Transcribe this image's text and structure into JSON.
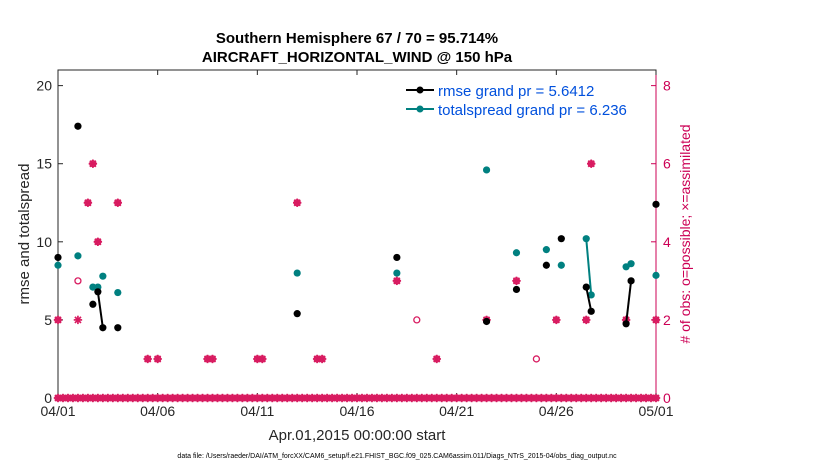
{
  "chart_data": {
    "type": "scatter",
    "title_line1": "Southern Hemisphere 67 / 70 = 95.714%",
    "title_line2": "AIRCRAFT_HORIZONTAL_WIND @ 150 hPa",
    "xlabel": "Apr.01,2015 00:00:00 start",
    "ylabel_left": "rmse and totalspread",
    "ylabel_right": "# of obs: o=possible; ×=assimilated",
    "xlim": [
      0,
      30
    ],
    "ylim_left": [
      0,
      21
    ],
    "ylim_right": [
      0,
      8.4
    ],
    "x_ticks": [
      {
        "x": 0,
        "label": "04/01"
      },
      {
        "x": 5,
        "label": "04/06"
      },
      {
        "x": 10,
        "label": "04/11"
      },
      {
        "x": 15,
        "label": "04/16"
      },
      {
        "x": 20,
        "label": "04/21"
      },
      {
        "x": 25,
        "label": "04/26"
      },
      {
        "x": 30,
        "label": "05/01"
      }
    ],
    "y_ticks_left": [
      "0",
      "5",
      "10",
      "15",
      "20"
    ],
    "y_ticks_right": [
      "0",
      "2",
      "4",
      "6",
      "8"
    ],
    "legend": {
      "position": "top-right",
      "entries": [
        {
          "label": "rmse grand pr = 5.6412",
          "color": "#000000"
        },
        {
          "label": "totalspread grand pr = 6.236",
          "color": "#008080"
        }
      ]
    },
    "colors": {
      "rmse": "#000000",
      "totalspread": "#008080",
      "obs": "#d81b60",
      "right_axis": "#cc0055"
    },
    "series": [
      {
        "name": "rmse grand pr = 5.6412",
        "color": "#000000",
        "points": [
          [
            0.0,
            9.0
          ],
          [
            1.0,
            17.4
          ],
          [
            1.75,
            6.0
          ],
          [
            2.0,
            6.8
          ],
          [
            2.25,
            4.5
          ],
          [
            3.0,
            4.5
          ],
          [
            12.0,
            5.4
          ],
          [
            17.0,
            9.0
          ],
          [
            21.5,
            4.9
          ],
          [
            23.0,
            6.95
          ],
          [
            24.5,
            8.5
          ],
          [
            25.25,
            10.2
          ],
          [
            26.5,
            7.1
          ],
          [
            26.75,
            5.55
          ],
          [
            28.5,
            4.75
          ],
          [
            28.75,
            7.5
          ],
          [
            30.0,
            12.4
          ]
        ],
        "segments": [
          [
            [
              2.0,
              6.8
            ],
            [
              2.25,
              4.5
            ]
          ],
          [
            [
              26.5,
              7.1
            ],
            [
              26.75,
              5.55
            ]
          ],
          [
            [
              28.5,
              4.75
            ],
            [
              28.75,
              7.5
            ]
          ]
        ]
      },
      {
        "name": "totalspread grand pr = 6.236",
        "color": "#008080",
        "points": [
          [
            0.0,
            8.5
          ],
          [
            1.0,
            9.1
          ],
          [
            1.75,
            7.1
          ],
          [
            2.0,
            7.1
          ],
          [
            2.25,
            7.8
          ],
          [
            3.0,
            6.75
          ],
          [
            12.0,
            8.0
          ],
          [
            17.0,
            8.0
          ],
          [
            21.5,
            14.6
          ],
          [
            23.0,
            9.3
          ],
          [
            24.5,
            9.5
          ],
          [
            25.25,
            8.5
          ],
          [
            26.5,
            10.2
          ],
          [
            26.75,
            6.6
          ],
          [
            28.5,
            8.4
          ],
          [
            28.75,
            8.6
          ],
          [
            30.0,
            7.85
          ]
        ],
        "segments": [
          [
            [
              26.5,
              10.2
            ],
            [
              26.75,
              6.6
            ]
          ]
        ]
      }
    ],
    "obs_possible": [
      [
        0,
        2
      ],
      [
        1,
        3
      ],
      [
        1.5,
        5
      ],
      [
        1.75,
        6
      ],
      [
        2,
        4
      ],
      [
        3,
        5
      ],
      [
        4.5,
        1
      ],
      [
        5,
        1
      ],
      [
        7.5,
        1
      ],
      [
        7.75,
        1
      ],
      [
        10,
        1
      ],
      [
        10.25,
        1
      ],
      [
        12,
        5
      ],
      [
        13,
        1
      ],
      [
        13.25,
        1
      ],
      [
        17,
        3
      ],
      [
        18,
        2
      ],
      [
        19,
        1
      ],
      [
        21.5,
        2
      ],
      [
        23,
        3
      ],
      [
        24,
        1
      ],
      [
        25,
        2
      ],
      [
        26.5,
        2
      ],
      [
        26.75,
        6
      ],
      [
        28.5,
        2
      ],
      [
        30,
        2
      ]
    ],
    "obs_assimilated": [
      [
        0,
        2
      ],
      [
        1,
        2
      ],
      [
        1.5,
        5
      ],
      [
        1.75,
        6
      ],
      [
        2,
        4
      ],
      [
        3,
        5
      ],
      [
        4.5,
        1
      ],
      [
        5,
        1
      ],
      [
        7.5,
        1
      ],
      [
        7.75,
        1
      ],
      [
        10,
        1
      ],
      [
        10.25,
        1
      ],
      [
        12,
        5
      ],
      [
        13,
        1
      ],
      [
        13.25,
        1
      ],
      [
        17,
        3
      ],
      [
        19,
        1
      ],
      [
        21.5,
        2
      ],
      [
        23,
        3
      ],
      [
        25,
        2
      ],
      [
        26.5,
        2
      ],
      [
        26.75,
        6
      ],
      [
        28.5,
        2
      ],
      [
        30,
        2
      ]
    ],
    "obs_zero_x_start": 0,
    "obs_zero_x_end": 30,
    "obs_zero_step": 0.25,
    "footer": "data file: /Users/raeder/DAI/ATM_forcXX/CAM6_setup/f.e21.FHIST_BGC.f09_025.CAM6assim.011/Diags_NTrS_2015-04/obs_diag_output.nc"
  }
}
